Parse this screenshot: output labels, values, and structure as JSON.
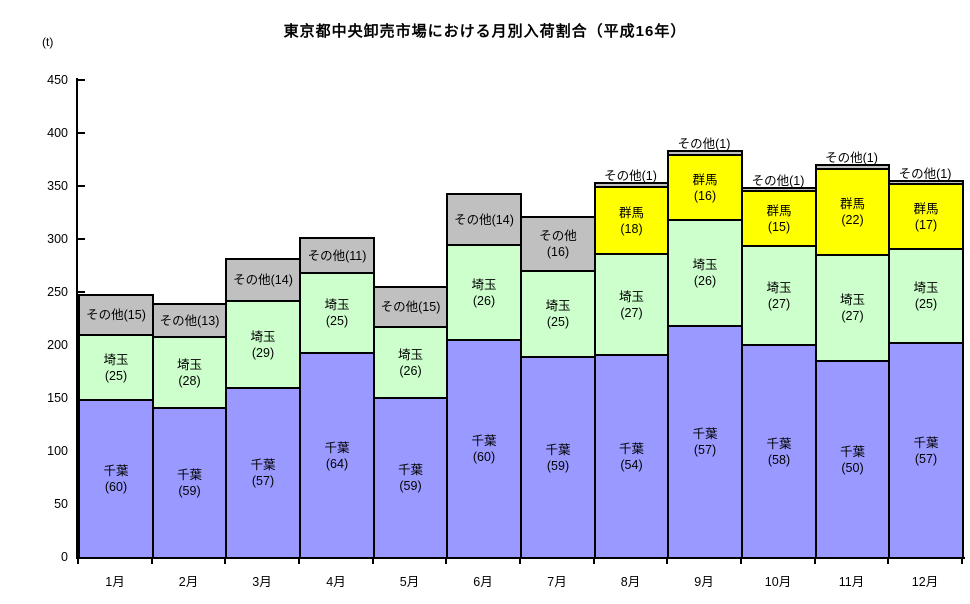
{
  "background_color": "#FFFFFF",
  "chart_data": {
    "type": "bar",
    "stacked": true,
    "title": "東京都中央卸売市場における月別入荷割合（平成16年）",
    "unit_label": "(t)",
    "xlabel": "",
    "ylabel": "(t)",
    "ylim": [
      0,
      450
    ],
    "yticks": [
      0,
      50,
      100,
      150,
      200,
      250,
      300,
      350,
      400,
      450
    ],
    "grid": false,
    "legend_position": "none",
    "categories": [
      "1月",
      "2月",
      "3月",
      "4月",
      "5月",
      "6月",
      "7月",
      "8月",
      "9月",
      "10月",
      "11月",
      "12月"
    ],
    "bar_totals_tons_approx": [
      248,
      240,
      282,
      302,
      256,
      343,
      322,
      354,
      384,
      346,
      371,
      356
    ],
    "series_order_bottom_to_top": [
      "千葉",
      "埼玉",
      "群馬",
      "その他"
    ],
    "series": [
      {
        "name": "千葉",
        "color": "#9999FF",
        "percent_by_month": [
          60,
          59,
          57,
          64,
          59,
          60,
          59,
          54,
          57,
          58,
          50,
          57
        ]
      },
      {
        "name": "埼玉",
        "color": "#CCFFCC",
        "percent_by_month": [
          25,
          28,
          29,
          25,
          26,
          26,
          25,
          27,
          26,
          27,
          27,
          25
        ]
      },
      {
        "name": "群馬",
        "color": "#FFFF00",
        "percent_by_month": [
          0,
          0,
          0,
          0,
          0,
          0,
          0,
          18,
          16,
          15,
          22,
          17
        ]
      },
      {
        "name": "その他",
        "color": "#C0C0C0",
        "percent_by_month": [
          15,
          13,
          14,
          11,
          15,
          14,
          16,
          1,
          1,
          1,
          1,
          1
        ]
      }
    ],
    "bars": [
      {
        "month": "1月",
        "segments": [
          {
            "name": "千葉",
            "pct": 60,
            "label_lines": [
              "千葉",
              "(60)"
            ],
            "label_pos": "inside"
          },
          {
            "name": "埼玉",
            "pct": 25,
            "label_lines": [
              "埼玉",
              "(25)"
            ],
            "label_pos": "inside"
          },
          {
            "name": "その他",
            "pct": 15,
            "label_lines": [
              "その他(15)"
            ],
            "label_pos": "inside"
          }
        ]
      },
      {
        "month": "2月",
        "segments": [
          {
            "name": "千葉",
            "pct": 59,
            "label_lines": [
              "千葉",
              "(59)"
            ],
            "label_pos": "inside"
          },
          {
            "name": "埼玉",
            "pct": 28,
            "label_lines": [
              "埼玉",
              "(28)"
            ],
            "label_pos": "inside"
          },
          {
            "name": "その他",
            "pct": 13,
            "label_lines": [
              "その他(13)"
            ],
            "label_pos": "inside"
          }
        ]
      },
      {
        "month": "3月",
        "segments": [
          {
            "name": "千葉",
            "pct": 57,
            "label_lines": [
              "千葉",
              "(57)"
            ],
            "label_pos": "inside"
          },
          {
            "name": "埼玉",
            "pct": 29,
            "label_lines": [
              "埼玉",
              "(29)"
            ],
            "label_pos": "inside"
          },
          {
            "name": "その他",
            "pct": 14,
            "label_lines": [
              "その他(14)"
            ],
            "label_pos": "inside"
          }
        ]
      },
      {
        "month": "4月",
        "segments": [
          {
            "name": "千葉",
            "pct": 64,
            "label_lines": [
              "千葉",
              "(64)"
            ],
            "label_pos": "inside"
          },
          {
            "name": "埼玉",
            "pct": 25,
            "label_lines": [
              "埼玉",
              "(25)"
            ],
            "label_pos": "inside"
          },
          {
            "name": "その他",
            "pct": 11,
            "label_lines": [
              "その他(11)"
            ],
            "label_pos": "inside"
          }
        ]
      },
      {
        "month": "5月",
        "segments": [
          {
            "name": "千葉",
            "pct": 59,
            "label_lines": [
              "千葉",
              "(59)"
            ],
            "label_pos": "inside"
          },
          {
            "name": "埼玉",
            "pct": 26,
            "label_lines": [
              "埼玉",
              "(26)"
            ],
            "label_pos": "inside"
          },
          {
            "name": "その他",
            "pct": 15,
            "label_lines": [
              "その他(15)"
            ],
            "label_pos": "inside"
          }
        ]
      },
      {
        "month": "6月",
        "segments": [
          {
            "name": "千葉",
            "pct": 60,
            "label_lines": [
              "千葉",
              "(60)"
            ],
            "label_pos": "inside"
          },
          {
            "name": "埼玉",
            "pct": 26,
            "label_lines": [
              "埼玉",
              "(26)"
            ],
            "label_pos": "inside"
          },
          {
            "name": "その他",
            "pct": 14,
            "label_lines": [
              "その他(14)"
            ],
            "label_pos": "inside"
          }
        ]
      },
      {
        "month": "7月",
        "segments": [
          {
            "name": "千葉",
            "pct": 59,
            "label_lines": [
              "千葉",
              "(59)"
            ],
            "label_pos": "inside"
          },
          {
            "name": "埼玉",
            "pct": 25,
            "label_lines": [
              "埼玉",
              "(25)"
            ],
            "label_pos": "inside"
          },
          {
            "name": "その他",
            "pct": 16,
            "label_lines": [
              "その他",
              "(16)"
            ],
            "label_pos": "inside"
          }
        ]
      },
      {
        "month": "8月",
        "segments": [
          {
            "name": "千葉",
            "pct": 54,
            "label_lines": [
              "千葉",
              "(54)"
            ],
            "label_pos": "inside"
          },
          {
            "name": "埼玉",
            "pct": 27,
            "label_lines": [
              "埼玉",
              "(27)"
            ],
            "label_pos": "inside"
          },
          {
            "name": "群馬",
            "pct": 18,
            "label_lines": [
              "群馬",
              "(18)"
            ],
            "label_pos": "inside"
          },
          {
            "name": "その他",
            "pct": 1,
            "label_lines": [
              "その他(1)"
            ],
            "label_pos": "above"
          }
        ]
      },
      {
        "month": "9月",
        "segments": [
          {
            "name": "千葉",
            "pct": 57,
            "label_lines": [
              "千葉",
              "(57)"
            ],
            "label_pos": "inside"
          },
          {
            "name": "埼玉",
            "pct": 26,
            "label_lines": [
              "埼玉",
              "(26)"
            ],
            "label_pos": "inside"
          },
          {
            "name": "群馬",
            "pct": 16,
            "label_lines": [
              "群馬",
              "(16)"
            ],
            "label_pos": "inside"
          },
          {
            "name": "その他",
            "pct": 1,
            "label_lines": [
              "その他(1)"
            ],
            "label_pos": "above"
          }
        ]
      },
      {
        "month": "10月",
        "segments": [
          {
            "name": "千葉",
            "pct": 58,
            "label_lines": [
              "千葉",
              "(58)"
            ],
            "label_pos": "inside"
          },
          {
            "name": "埼玉",
            "pct": 27,
            "label_lines": [
              "埼玉",
              "(27)"
            ],
            "label_pos": "inside"
          },
          {
            "name": "群馬",
            "pct": 15,
            "label_lines": [
              "群馬",
              "(15)"
            ],
            "label_pos": "inside"
          },
          {
            "name": "その他",
            "pct": 1,
            "label_lines": [
              "その他(1)"
            ],
            "label_pos": "above"
          }
        ]
      },
      {
        "month": "11月",
        "segments": [
          {
            "name": "千葉",
            "pct": 50,
            "label_lines": [
              "千葉",
              "(50)"
            ],
            "label_pos": "inside"
          },
          {
            "name": "埼玉",
            "pct": 27,
            "label_lines": [
              "埼玉",
              "(27)"
            ],
            "label_pos": "inside"
          },
          {
            "name": "群馬",
            "pct": 22,
            "label_lines": [
              "群馬",
              "(22)"
            ],
            "label_pos": "inside"
          },
          {
            "name": "その他",
            "pct": 1,
            "label_lines": [
              "その他(1)"
            ],
            "label_pos": "above"
          }
        ]
      },
      {
        "month": "12月",
        "segments": [
          {
            "name": "千葉",
            "pct": 57,
            "label_lines": [
              "千葉",
              "(57)"
            ],
            "label_pos": "inside"
          },
          {
            "name": "埼玉",
            "pct": 25,
            "label_lines": [
              "埼玉",
              "(25)"
            ],
            "label_pos": "inside"
          },
          {
            "name": "群馬",
            "pct": 17,
            "label_lines": [
              "群馬",
              "(17)"
            ],
            "label_pos": "inside"
          },
          {
            "name": "その他",
            "pct": 1,
            "label_lines": [
              "その他(1)"
            ],
            "label_pos": "above"
          }
        ]
      }
    ]
  }
}
